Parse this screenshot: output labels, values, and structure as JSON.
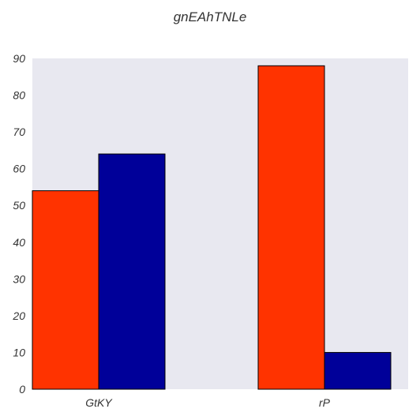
{
  "chart_data": {
    "type": "bar",
    "title": "gnEAhTNLe",
    "categories": [
      "GtKY",
      "rP"
    ],
    "series": [
      {
        "values": [
          54,
          88
        ],
        "color": "#ff3300"
      },
      {
        "values": [
          64,
          10
        ],
        "color": "#000099"
      }
    ],
    "ylim": [
      0,
      90
    ],
    "yticks": [
      0,
      10,
      20,
      30,
      40,
      50,
      60,
      70,
      80,
      90
    ],
    "grid": false,
    "plot_background": "#e8e8f0",
    "xlabel": "",
    "ylabel": ""
  }
}
